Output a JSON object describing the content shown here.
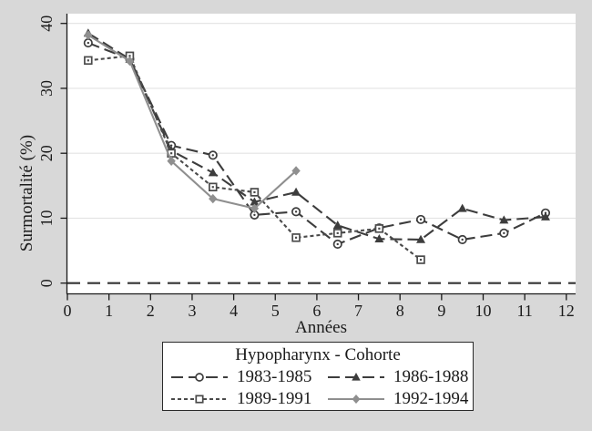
{
  "figure": {
    "background": "#d8d8d8",
    "plot_background": "#ffffff",
    "grid_color": "#e3e3e3",
    "axis_color": "#1a1a1a",
    "text_color": "#1a1a1a",
    "zero_line_color": "#333333"
  },
  "chart_data": {
    "type": "line",
    "title": "",
    "xlabel": "Années",
    "ylabel": "Surmortalité (%)",
    "xlim": [
      0,
      12
    ],
    "ylim": [
      0,
      40
    ],
    "x_ticks": [
      0,
      1,
      2,
      3,
      4,
      5,
      6,
      7,
      8,
      9,
      10,
      11,
      12
    ],
    "y_ticks": [
      0,
      10,
      20,
      30,
      40
    ],
    "grid": "horizontal-light",
    "legend_position": "bottom-center",
    "legend_title": "Hypopharynx - Cohorte",
    "reference_line_y": 0,
    "series": [
      {
        "name": "1983-1985",
        "marker": "circle",
        "marker_fill": "open",
        "color": "#3d3d3d",
        "line_style": "long-dash",
        "x": [
          0.5,
          1.5,
          2.5,
          3.5,
          4.5,
          5.5,
          6.5,
          7.5,
          8.5,
          9.5,
          10.5,
          11.5
        ],
        "y": [
          37,
          34.5,
          21.2,
          19.7,
          10.5,
          11,
          6,
          8.5,
          9.8,
          6.7,
          7.7,
          10.8
        ]
      },
      {
        "name": "1986-1988",
        "marker": "triangle",
        "marker_fill": "solid",
        "color": "#3d3d3d",
        "line_style": "long-dash",
        "x": [
          0.5,
          1.5,
          2.5,
          3.5,
          4.5,
          5.5,
          6.5,
          7.5,
          8.5,
          9.5,
          10.5,
          11.5
        ],
        "y": [
          38.5,
          34.5,
          20.4,
          17,
          12.5,
          14,
          8.9,
          6.8,
          6.7,
          11.5,
          9.7,
          10.2
        ]
      },
      {
        "name": "1989-1991",
        "marker": "square",
        "marker_fill": "open",
        "color": "#4a4a4a",
        "line_style": "short-dash",
        "x": [
          0.5,
          1.5,
          2.5,
          3.5,
          4.5,
          5.5,
          6.5,
          7.5,
          8.5
        ],
        "y": [
          34.3,
          35,
          20,
          14.8,
          14,
          7,
          7.7,
          8.4,
          3.6
        ]
      },
      {
        "name": "1992-1994",
        "marker": "diamond",
        "marker_fill": "solid",
        "color": "#8f8f8f",
        "line_style": "solid",
        "x": [
          0.5,
          1.5,
          2.5,
          3.5,
          4.5,
          5.5
        ],
        "y": [
          38.2,
          34.2,
          18.8,
          13,
          11.5,
          17.3
        ]
      }
    ]
  }
}
